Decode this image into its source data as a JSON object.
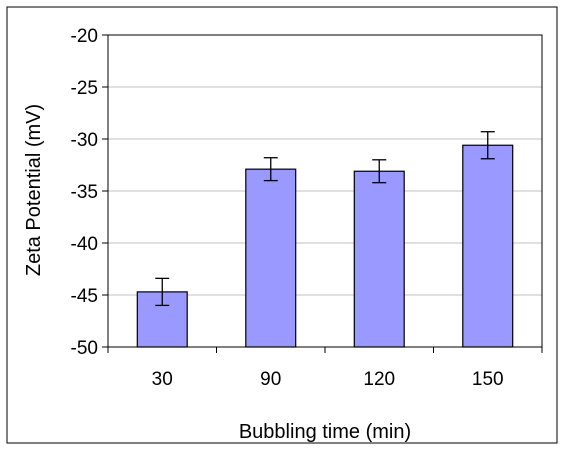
{
  "chart_data": {
    "type": "bar",
    "xlabel": "Bubbling time (min)",
    "ylabel": "Zeta Potential (mV)",
    "categories": [
      "30",
      "90",
      "120",
      "150"
    ],
    "values": [
      -44.7,
      -32.9,
      -33.1,
      -30.6
    ],
    "errors": [
      1.3,
      1.1,
      1.1,
      1.3
    ],
    "ylim": [
      -50,
      -20
    ],
    "yticks": [
      "-20",
      "-25",
      "-30",
      "-35",
      "-40",
      "-45",
      "-50"
    ],
    "grid": true,
    "legend": "none",
    "bar_color": "#9999ff",
    "grid_color": "#c0c0c0"
  }
}
